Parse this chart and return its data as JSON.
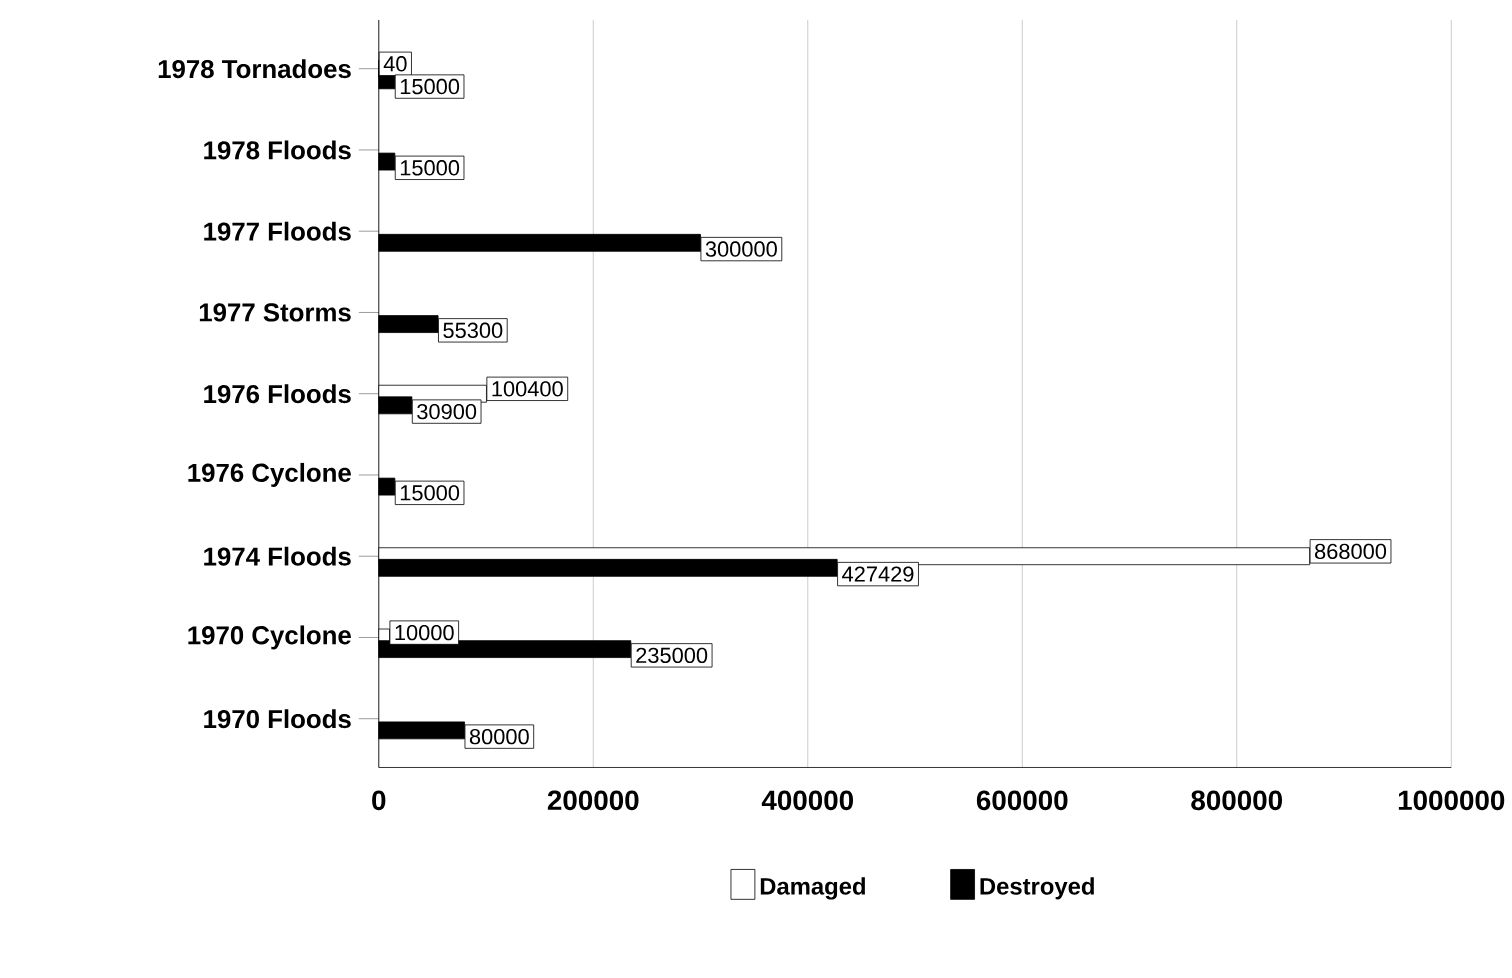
{
  "chart_data": {
    "type": "bar",
    "orientation": "horizontal",
    "categories": [
      "1978 Tornadoes",
      "1978 Floods",
      "1977 Floods",
      "1977 Storms",
      "1976 Floods",
      "1976 Cyclone",
      "1974 Floods",
      "1970 Cyclone",
      "1970 Floods"
    ],
    "series": [
      {
        "name": "Damaged",
        "color": "#ffffff",
        "values": [
          40,
          null,
          null,
          null,
          100400,
          null,
          868000,
          10000,
          null
        ]
      },
      {
        "name": "Destroyed",
        "color": "#000000",
        "values": [
          15000,
          15000,
          300000,
          55300,
          30900,
          15000,
          427429,
          235000,
          80000
        ]
      }
    ],
    "xlim": [
      0,
      1000000
    ],
    "xticks": [
      0,
      200000,
      400000,
      600000,
      800000,
      1000000
    ],
    "grid": "x",
    "legend": "bottom",
    "data_labels": true
  }
}
